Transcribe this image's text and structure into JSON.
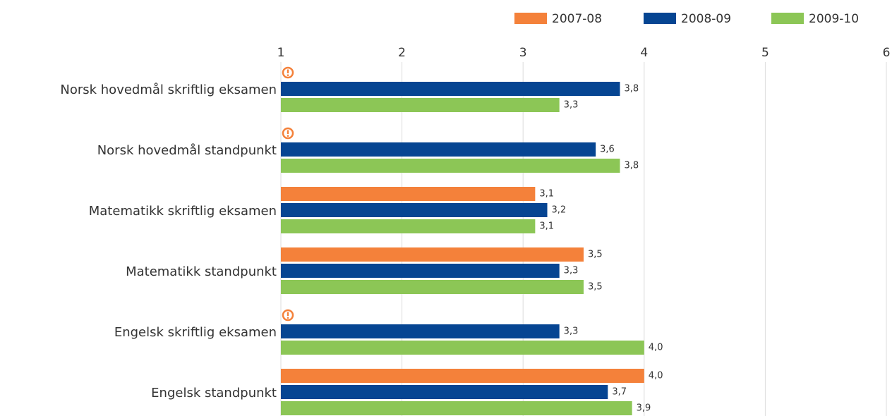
{
  "chart_data": {
    "type": "bar",
    "orientation": "horizontal",
    "categories": [
      "Norsk hovedmål skriftlig eksamen",
      "Norsk hovedmål standpunkt",
      "Matematikk skriftlig eksamen",
      "Matematikk standpunkt",
      "Engelsk skriftlig eksamen",
      "Engelsk standpunkt"
    ],
    "series": [
      {
        "name": "2007-08",
        "color": "#f4813a",
        "values": [
          null,
          null,
          3.1,
          3.5,
          null,
          4.0
        ],
        "value_labels": [
          null,
          null,
          "3,1",
          "3,5",
          null,
          "4,0"
        ]
      },
      {
        "name": "2008-09",
        "color": "#064592",
        "values": [
          3.8,
          3.6,
          3.2,
          3.3,
          3.3,
          3.7
        ],
        "value_labels": [
          "3,8",
          "3,6",
          "3,2",
          "3,3",
          "3,3",
          "3,7"
        ]
      },
      {
        "name": "2009-10",
        "color": "#8cc656",
        "values": [
          3.3,
          3.8,
          3.1,
          3.5,
          4.0,
          3.9
        ],
        "value_labels": [
          "3,3",
          "3,8",
          "3,1",
          "3,5",
          "4,0",
          "3,9"
        ]
      }
    ],
    "xlim": [
      1,
      6
    ],
    "xticks": [
      1,
      2,
      3,
      4,
      5,
      6
    ],
    "grid": true,
    "legend": "top-right"
  }
}
